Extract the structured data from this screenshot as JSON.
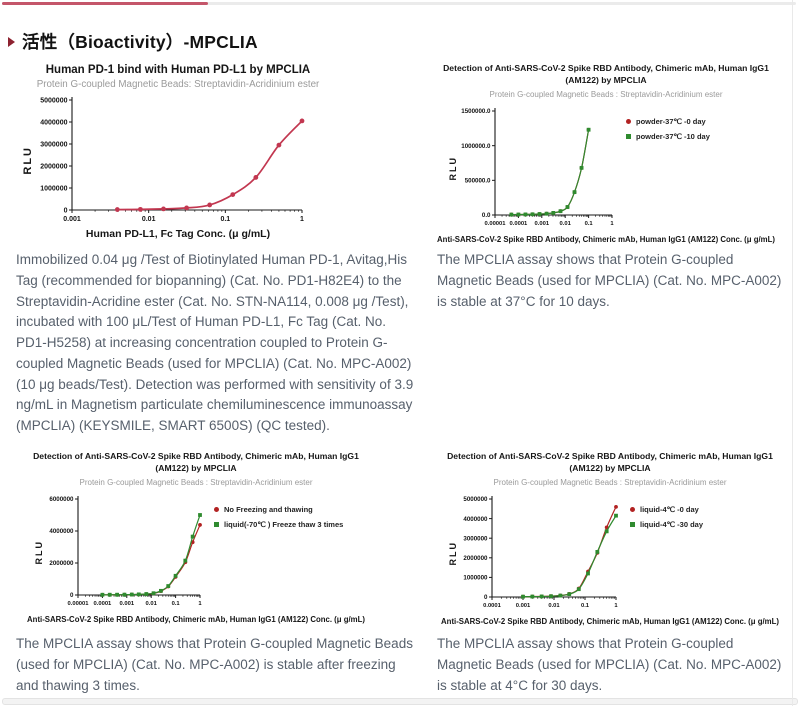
{
  "page": {
    "heading": "活性（Bioactivity）-MPCLIA"
  },
  "captions": {
    "pd1": "Immobilized 0.04 μg /Test of Biotinylated Human PD-1, Avitag,His Tag (recommended for biopanning) (Cat. No. PD1-H82E4) to the Streptavidin-Acridine ester (Cat. No. STN-NA114, 0.008 μg /Test), incubated with 100 μL/Test of Human PD-L1, Fc Tag (Cat. No. PD1-H5258) at increasing concentration coupled to Protein G-coupled Magnetic Beads (used for MPCLIA) (Cat. No. MPC-A002) (10 μg beads/Test). Detection was performed with sensitivity of 3.9 ng/mL in Magnetism particulate chemiluminescence immunoassay (MPCLIA) (KEYSMILE, SMART 6500S) (QC tested).",
    "stability_37": "The MPCLIA assay shows that Protein G-coupled Magnetic Beads (used for MPCLIA) (Cat. No. MPC-A002) is stable at 37°C for 10 days.",
    "freeze_thaw": "The MPCLIA assay shows that Protein G-coupled Magnetic Beads (used for MPCLIA) (Cat. No. MPC-A002) is stable after freezing and thawing 3 times.",
    "stability_4": "The MPCLIA assay shows that Protein G-coupled Magnetic Beads (used for MPCLIA) (Cat. No. MPC-A002) is stable at 4°C for 30 days."
  },
  "chart_data": [
    {
      "type": "line",
      "title": "Human PD-1 bind with Human PD-L1 by MPCLIA",
      "subtitle": "Protein G-coupled Magnetic Beads: Streptavidin-Acridinium ester",
      "xlabel": "Human PD-L1, Fc Tag Conc. (μ g/mL)",
      "ylabel": "RLU",
      "x_scale": "log",
      "xticks": [
        0.001,
        0.01,
        0.1,
        1
      ],
      "xtick_labels": [
        "0.001",
        "0.01",
        "0.1",
        "1"
      ],
      "yticks": [
        0,
        1000000,
        2000000,
        3000000,
        4000000,
        5000000
      ],
      "ytick_labels": [
        "0",
        "1000000",
        "2000000",
        "3000000",
        "4000000",
        "5000000"
      ],
      "ylim": [
        0,
        5000000
      ],
      "grid": false,
      "legend": [],
      "series": [
        {
          "name": "Human PD-L1, Fc Tag",
          "color": "#c23750",
          "marker": "circle",
          "x": [
            0.0039,
            0.0078,
            0.0156,
            0.03125,
            0.0625,
            0.125,
            0.25,
            0.5,
            1
          ],
          "y": [
            20000,
            28000,
            50000,
            95000,
            230000,
            700000,
            1480000,
            2950000,
            4050000
          ]
        }
      ]
    },
    {
      "type": "line",
      "title": "Detection of Anti-SARS-CoV-2 Spike RBD Antibody, Chimeric mAb, Human IgG1",
      "title2": "(AM122) by MPCLIA",
      "subtitle": "Protein G-coupled Magnetic Beads : Streptavidin-Acridinium ester",
      "xlabel": "Anti-SARS-CoV-2 Spike RBD Antibody, Chimeric mAb, Human IgG1 (AM122) Conc. (μ g/mL)",
      "ylabel": "RLU",
      "x_scale": "log",
      "xticks": [
        1e-05,
        0.0001,
        0.001,
        0.01,
        0.1,
        1
      ],
      "xtick_labels": [
        "0.00001",
        "0.0001",
        "0.001",
        "0.01",
        "0.1",
        "1"
      ],
      "yticks": [
        0,
        500000,
        1000000,
        1500000
      ],
      "ytick_labels": [
        "0.0",
        "500000.0",
        "1000000.0",
        "1500000.0"
      ],
      "ylim": [
        0,
        1500000
      ],
      "grid": false,
      "legend": [
        {
          "label": "powder-37℃ -0 day",
          "color": "#b22222",
          "marker": "circle"
        },
        {
          "label": "powder-37℃ -10 day",
          "color": "#2f8b2f",
          "marker": "square"
        }
      ],
      "series": [
        {
          "name": "powder-37℃ -0 day",
          "color": "#b22222",
          "marker": "circle",
          "x": [
            5e-05,
            0.0001,
            0.0002,
            0.0004,
            0.0008,
            0.0016,
            0.0031,
            0.0063,
            0.0125,
            0.025,
            0.05,
            0.1
          ],
          "y": [
            6000,
            7000,
            8000,
            10000,
            14000,
            19000,
            30000,
            55000,
            115000,
            330000,
            680000,
            1230000
          ]
        },
        {
          "name": "powder-37℃ -10 day",
          "color": "#2f8b2f",
          "marker": "square",
          "x": [
            5e-05,
            0.0001,
            0.0002,
            0.0004,
            0.0008,
            0.0016,
            0.0031,
            0.0063,
            0.0125,
            0.025,
            0.05,
            0.1
          ],
          "y": [
            6000,
            7000,
            8000,
            10000,
            14000,
            19000,
            30000,
            55000,
            115000,
            330000,
            680000,
            1230000
          ]
        }
      ]
    },
    {
      "type": "line",
      "title": "Detection of Anti-SARS-CoV-2 Spike RBD Antibody, Chimeric mAb, Human IgG1",
      "title2": "(AM122) by MPCLIA",
      "subtitle": "Protein G-coupled Magnetic Beads : Streptavidin-Acridinium ester",
      "xlabel": "Anti-SARS-CoV-2 Spike RBD Antibody, Chimeric mAb, Human IgG1 (AM122) Conc. (μ g/mL)",
      "ylabel": "RLU",
      "x_scale": "log",
      "xticks": [
        1e-05,
        0.0001,
        0.001,
        0.01,
        0.1,
        1
      ],
      "xtick_labels": [
        "0.00001",
        "0.0001",
        "0.001",
        "0.01",
        "0.1",
        "1"
      ],
      "yticks": [
        0,
        2000000,
        4000000,
        6000000
      ],
      "ytick_labels": [
        "0",
        "2000000",
        "4000000",
        "6000000"
      ],
      "ylim": [
        0,
        6000000
      ],
      "grid": false,
      "legend": [
        {
          "label": "No Freezing and thawing",
          "color": "#b22222",
          "marker": "circle"
        },
        {
          "label": "liquid(-70℃ ) Freeze thaw 3 times",
          "color": "#2f8b2f",
          "marker": "square"
        }
      ],
      "series": [
        {
          "name": "No Freezing and thawing",
          "color": "#b22222",
          "marker": "circle",
          "x": [
            0.0001,
            0.0002,
            0.0004,
            0.0008,
            0.0016,
            0.0031,
            0.0063,
            0.0125,
            0.025,
            0.05,
            0.1,
            0.25,
            0.5,
            1
          ],
          "y": [
            14000,
            15000,
            17000,
            20000,
            26000,
            36000,
            55000,
            100000,
            240000,
            530000,
            1130000,
            2050000,
            3300000,
            4380000
          ]
        },
        {
          "name": "liquid(-70℃ ) Freeze thaw 3 times",
          "color": "#2f8b2f",
          "marker": "square",
          "x": [
            0.0001,
            0.0002,
            0.0004,
            0.0008,
            0.0016,
            0.0031,
            0.0063,
            0.0125,
            0.025,
            0.05,
            0.1,
            0.25,
            0.5,
            1
          ],
          "y": [
            15000,
            16000,
            18000,
            22000,
            28000,
            39000,
            60000,
            110000,
            260000,
            560000,
            1200000,
            2150000,
            3650000,
            5000000
          ]
        }
      ]
    },
    {
      "type": "line",
      "title": "Detection of Anti-SARS-CoV-2 Spike RBD Antibody, Chimeric mAb, Human IgG1",
      "title2": "(AM122) by MPCLIA",
      "subtitle": "Protein G-coupled Magnetic Beads : Streptavidin-Acridinium ester",
      "xlabel": "Anti-SARS-CoV-2 Spike RBD Antibody, Chimeric mAb, Human IgG1 (AM122) Conc. (μ g/mL)",
      "ylabel": "RLU",
      "x_scale": "log",
      "xticks": [
        0.0001,
        0.001,
        0.01,
        0.1,
        1
      ],
      "xtick_labels": [
        "0.0001",
        "0.001",
        "0.01",
        "0.1",
        "1"
      ],
      "yticks": [
        0,
        1000000,
        2000000,
        3000000,
        4000000,
        5000000
      ],
      "ytick_labels": [
        "0",
        "1000000",
        "2000000",
        "3000000",
        "4000000",
        "5000000"
      ],
      "ylim": [
        0,
        5000000
      ],
      "grid": false,
      "legend": [
        {
          "label": "liquid-4℃ -0 day",
          "color": "#b22222",
          "marker": "circle"
        },
        {
          "label": "liquid-4℃ -30 day",
          "color": "#2f8b2f",
          "marker": "square"
        }
      ],
      "series": [
        {
          "name": "liquid-4℃ -0 day",
          "color": "#b22222",
          "marker": "circle",
          "x": [
            0.001,
            0.002,
            0.004,
            0.008,
            0.016,
            0.031,
            0.063,
            0.125,
            0.25,
            0.5,
            1
          ],
          "y": [
            20000,
            24000,
            30000,
            45000,
            78000,
            155000,
            430000,
            1300000,
            2250000,
            3550000,
            4600000
          ]
        },
        {
          "name": "liquid-4℃ -30 day",
          "color": "#2f8b2f",
          "marker": "square",
          "x": [
            0.001,
            0.002,
            0.004,
            0.008,
            0.016,
            0.031,
            0.063,
            0.125,
            0.25,
            0.5,
            1
          ],
          "y": [
            18000,
            22000,
            28000,
            40000,
            72000,
            145000,
            400000,
            1200000,
            2300000,
            3350000,
            4150000
          ]
        }
      ]
    }
  ]
}
